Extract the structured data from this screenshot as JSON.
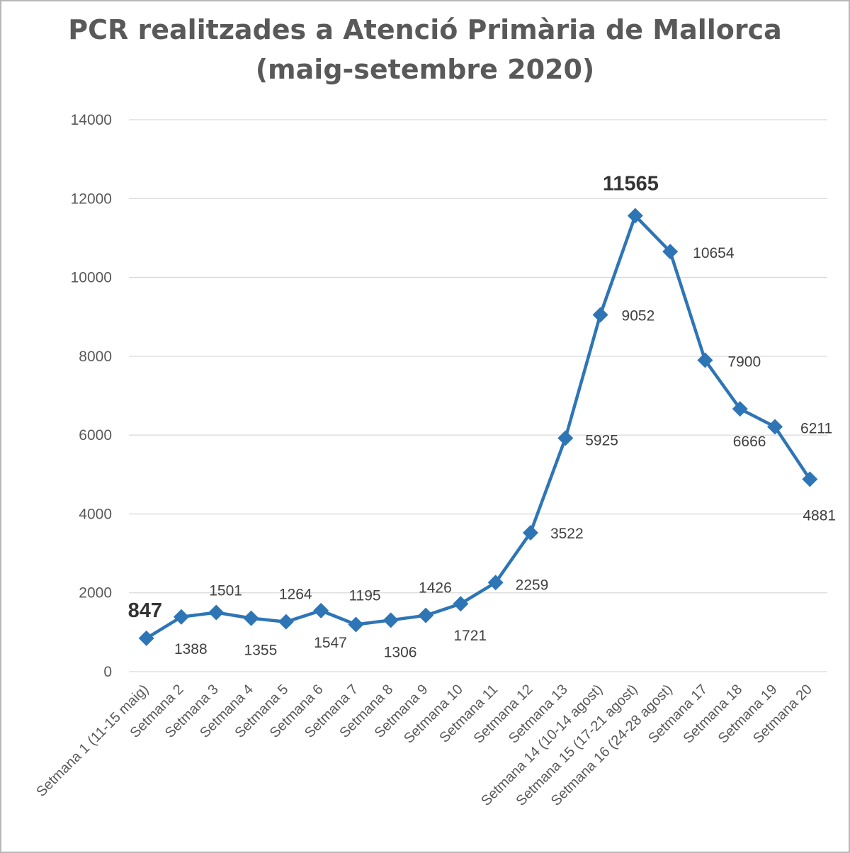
{
  "chart_data": {
    "type": "line",
    "title_lines": [
      "PCR realitzades a Atenció Primària de Mallorca",
      "(maig-setembre 2020)"
    ],
    "categories": [
      "Setmana 1 (11-15 maig)",
      "Setmana 2",
      "Setmana 3",
      "Setmana 4",
      "Setmana 5",
      "Setmana 6",
      "Setmana 7",
      "Setmana 8",
      "Setmana 9",
      "Setmana 10",
      "Setmana 11",
      "Setmana 12",
      "Setmana 13",
      "Setmana 14 (10-14 agost)",
      "Setmana 15 (17-21 agost)",
      "Setmana 16 (24-28 agost)",
      "Setmana 17",
      "Setmana 18",
      "Setmana 19",
      "Setmana 20"
    ],
    "series": [
      {
        "values": [
          847,
          1388,
          1501,
          1355,
          1264,
          1547,
          1195,
          1306,
          1426,
          1721,
          2259,
          3522,
          5925,
          9052,
          11565,
          10654,
          7900,
          6666,
          6211,
          4881
        ]
      }
    ],
    "data_labels": [
      "847",
      "1388",
      "1501",
      "1355",
      "1264",
      "1547",
      "1195",
      "1306",
      "1426",
      "1721",
      "2259",
      "3522",
      "5925",
      "9052",
      "11565",
      "10654",
      "7900",
      "6666",
      "6211",
      "4881"
    ],
    "y_ticks": [
      "0",
      "2000",
      "4000",
      "6000",
      "8000",
      "10000",
      "12000",
      "14000"
    ],
    "ylim": [
      0,
      14000
    ],
    "grid": true,
    "line_color": "#2e75b6",
    "label_color": "#404040",
    "emphasized_labels": [
      0,
      14
    ]
  }
}
